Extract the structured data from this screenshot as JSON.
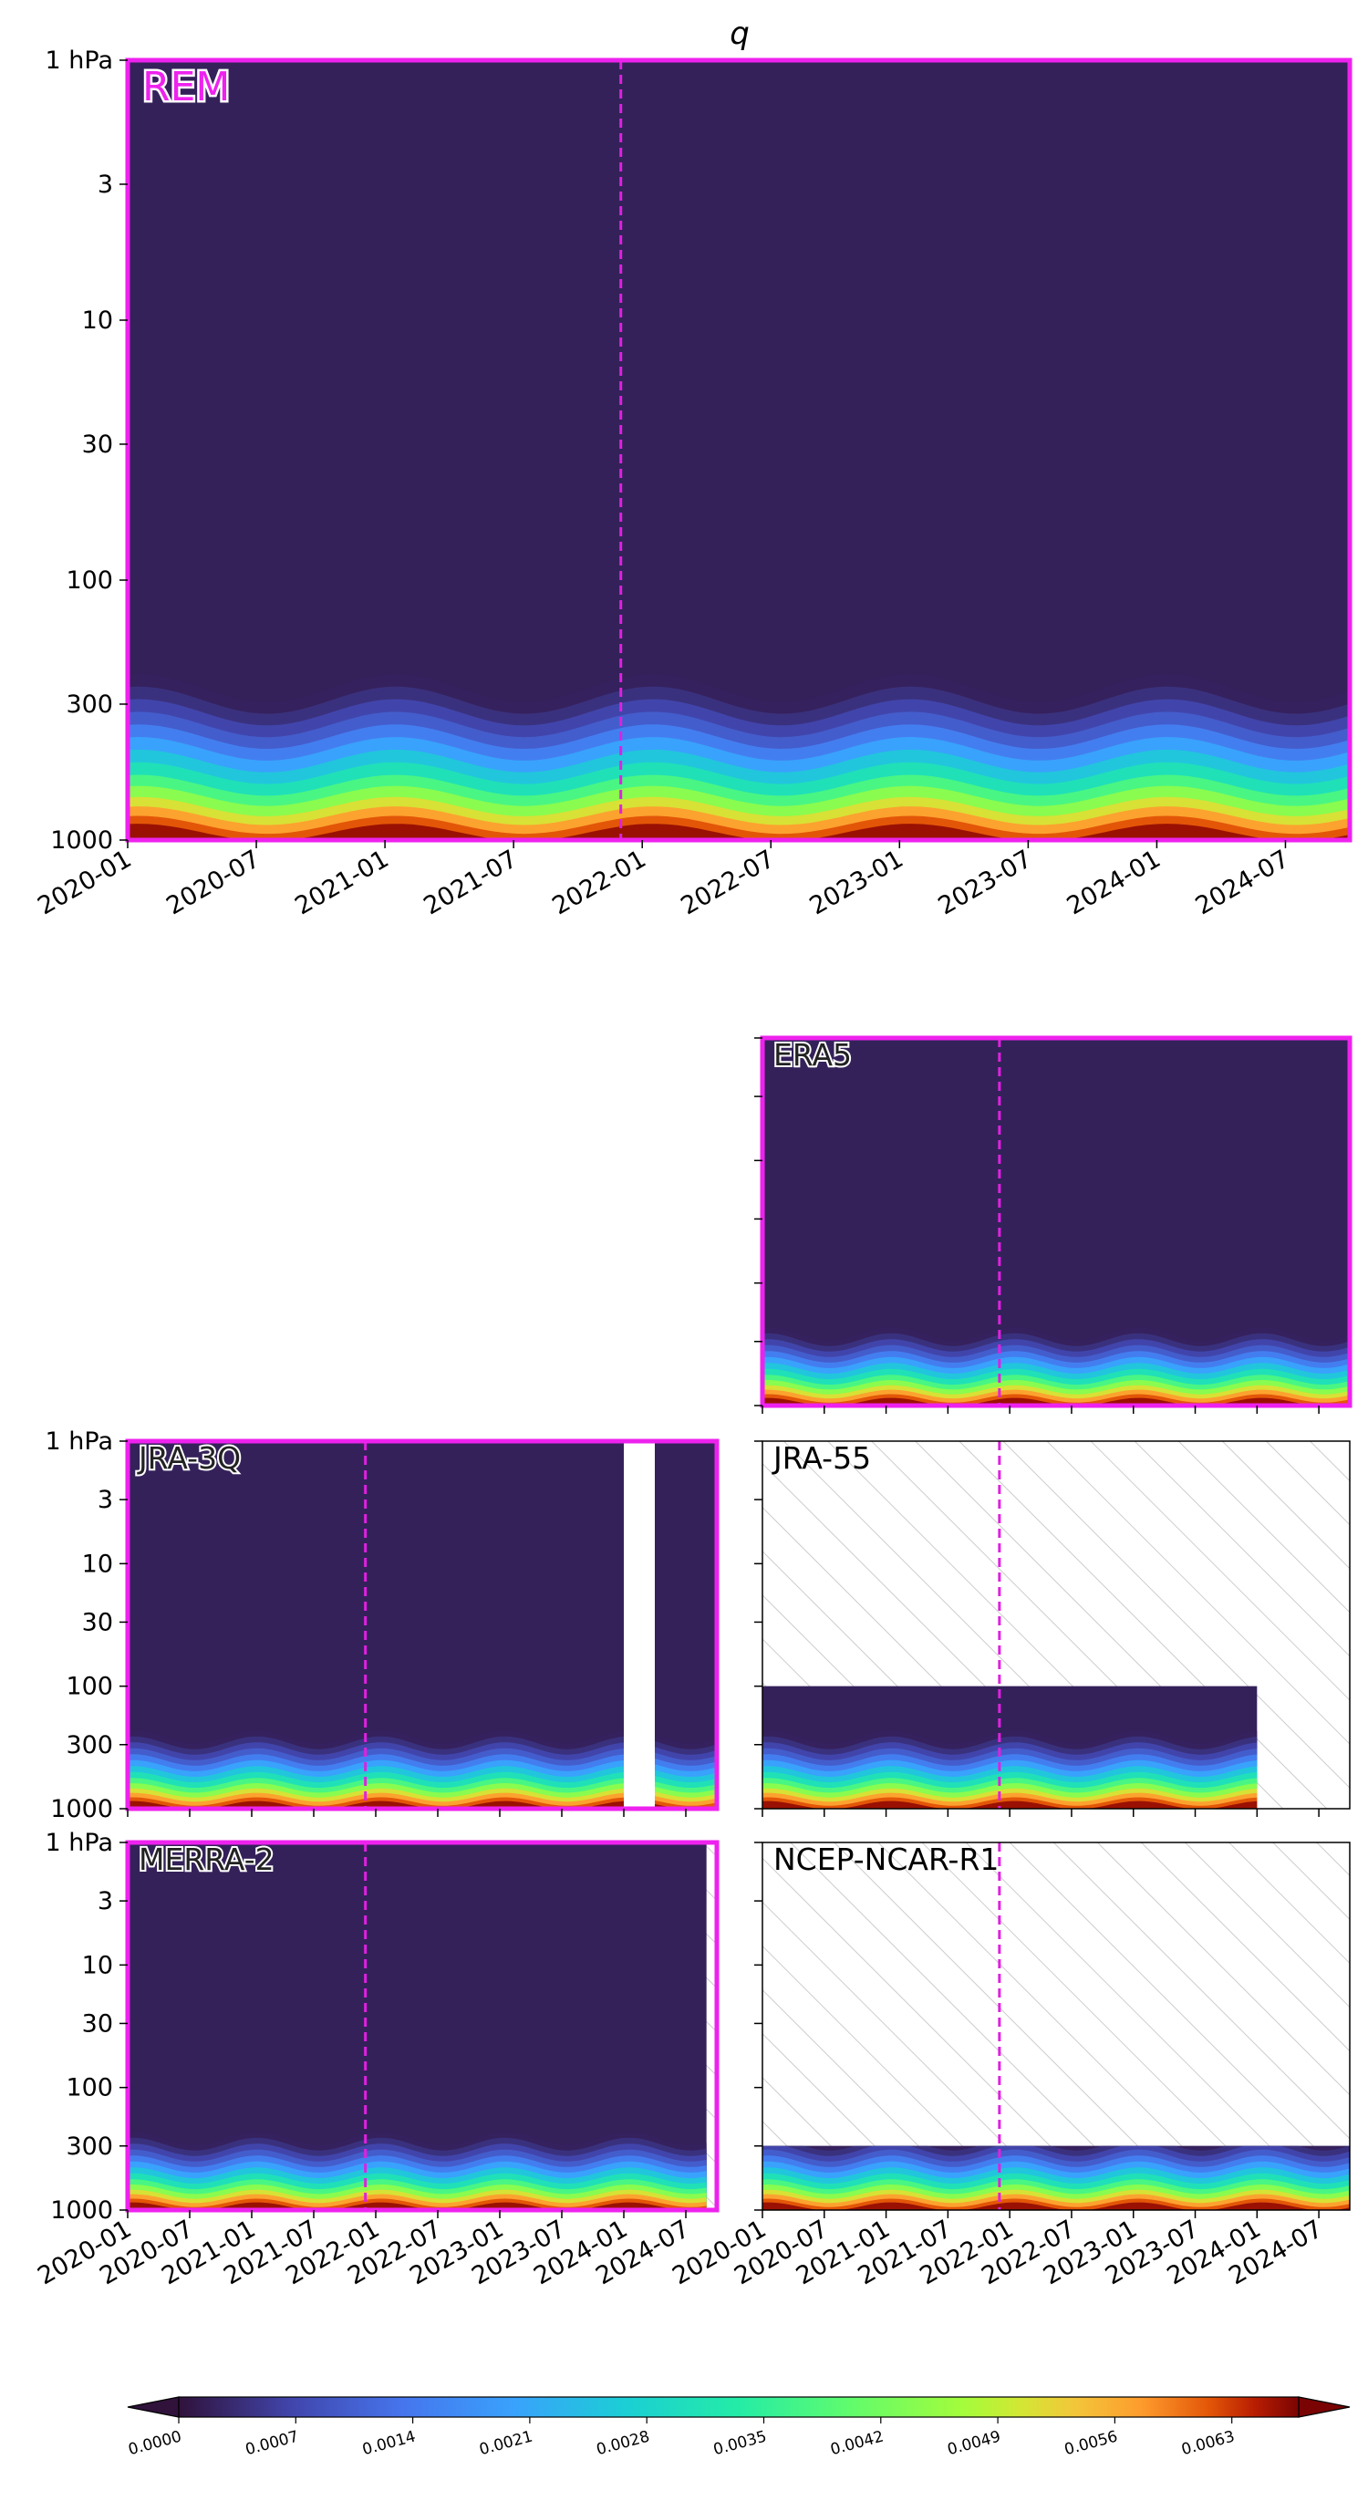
{
  "chart_data": {
    "type": "heatmap",
    "title": "q",
    "y_axis": {
      "scale": "log",
      "inverted": true,
      "range": [
        1,
        1000
      ],
      "ticks": [
        1,
        3,
        10,
        30,
        100,
        300,
        1000
      ],
      "tick_labels": [
        "1 hPa",
        "3",
        "10",
        "30",
        "100",
        "300",
        "1000"
      ]
    },
    "x_axis": {
      "type": "date",
      "range": [
        "2020-01",
        "2024-10"
      ],
      "ticks": [
        "2020-01",
        "2020-07",
        "2021-01",
        "2021-07",
        "2022-01",
        "2022-07",
        "2023-01",
        "2023-07",
        "2024-01",
        "2024-07"
      ],
      "tick_labels": [
        "2020-01",
        "2020-07",
        "2021-01",
        "2021-07",
        "2022-01",
        "2022-07",
        "2023-01",
        "2023-07",
        "2024-01",
        "2024-07"
      ]
    },
    "reference_line": {
      "date": "2021-12",
      "color": "#e020e0",
      "style": "dashed"
    },
    "colorbar": {
      "colormap": "turbo",
      "min": 0.0,
      "max": 0.0067,
      "extend": "both",
      "tick_values": [
        0.0,
        0.0007,
        0.0014,
        0.0021,
        0.0028,
        0.0035,
        0.0042,
        0.0049,
        0.0056,
        0.0063
      ],
      "tick_labels": [
        "0.0000",
        "0.0007",
        "0.0014",
        "0.0021",
        "0.0028",
        "0.0035",
        "0.0042",
        "0.0049",
        "0.0056",
        "0.0063"
      ]
    },
    "panels": [
      {
        "id": "rem",
        "label": "REM",
        "highlighted": true,
        "top_pressure": 1,
        "end": "2024-10",
        "gap": null,
        "hatched": false
      },
      {
        "id": "era5",
        "label": "ERA5",
        "highlighted": true,
        "top_pressure": 1,
        "end": "2024-10",
        "gap": null,
        "hatched": false
      },
      {
        "id": "jra3q",
        "label": "JRA-3Q",
        "highlighted": true,
        "top_pressure": 1,
        "end": "2024-10",
        "gap": [
          "2024-01",
          "2024-04"
        ],
        "hatched": false
      },
      {
        "id": "jra55",
        "label": "JRA-55",
        "highlighted": false,
        "top_pressure": 100,
        "end": "2024-01",
        "gap": null,
        "hatched": true
      },
      {
        "id": "merra2",
        "label": "MERRA-2",
        "highlighted": true,
        "top_pressure": 1,
        "end": "2024-09",
        "gap": null,
        "hatched": true
      },
      {
        "id": "ncep",
        "label": "NCEP-NCAR-R1",
        "highlighted": false,
        "top_pressure": 300,
        "end": "2024-10",
        "gap": null,
        "hatched": true
      }
    ],
    "colors": {
      "highlight": "#ee22ee",
      "background_fill": "#34215a",
      "hatch": "#cccccc"
    }
  }
}
